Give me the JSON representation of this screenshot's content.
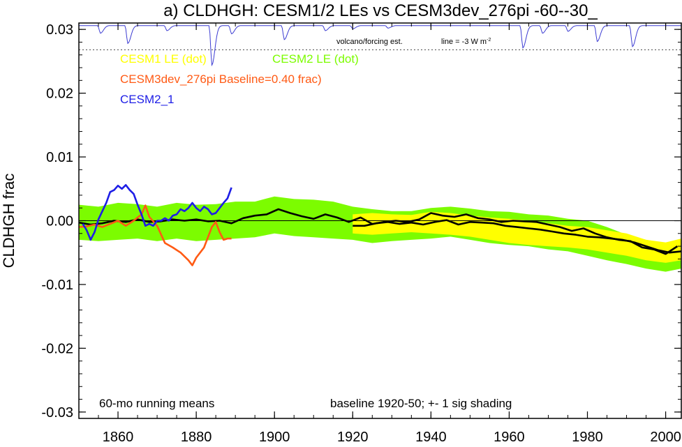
{
  "chart_data": {
    "type": "line",
    "title": "a) CLDHGH: CESM1/2 LEs vs CESM3dev_276pi -60--30_",
    "xlabel": "",
    "ylabel": "CLDHGH frac",
    "xlim": [
      1850,
      2004
    ],
    "ylim": [
      -0.031,
      0.031
    ],
    "x_ticks": [
      1860,
      1880,
      1900,
      1920,
      1940,
      1960,
      1980,
      2000
    ],
    "y_ticks": [
      0.03,
      0.02,
      0.01,
      0.0,
      -0.01,
      -0.02,
      -0.03
    ],
    "y_tick_labels": [
      "0.03",
      "0.02",
      "0.01",
      "0.00",
      "-0.01",
      "-0.02",
      "-0.03"
    ],
    "x_tick_labels": [
      "1860",
      "1880",
      "1900",
      "1920",
      "1940",
      "1960",
      "1980",
      "2000"
    ],
    "zero_line": true,
    "legend": {
      "cesm1": "CESM1 LE (dot)",
      "cesm2": "CESM2 LE (dot)",
      "cesm3": "CESM3dev_276pi Baseline=0.40 frac)",
      "cesm2_1": "CESM2_1"
    },
    "annotations": {
      "volcano": "volcano/forcing est.",
      "line_note": "line = -3 W m",
      "line_note_sup": "-2",
      "running": "60-mo running means",
      "baseline": "baseline 1920-50; +- 1 sig shading"
    },
    "colors": {
      "cesm1": "#ffff00",
      "cesm2": "#7cfc00",
      "cesm3": "#ff5a14",
      "cesm2_1": "#1e1ee6",
      "mean": "#000000",
      "volcano": "#3c3cd2"
    },
    "volcano_reference_y": 0.0268,
    "volcano_dips": [
      {
        "year": 1855.5,
        "depth": 0.0012
      },
      {
        "year": 1862.5,
        "depth": 0.0028
      },
      {
        "year": 1872.5,
        "depth": 0.0008
      },
      {
        "year": 1884.0,
        "depth": 0.0062
      },
      {
        "year": 1889.0,
        "depth": 0.0013
      },
      {
        "year": 1902.5,
        "depth": 0.0022
      },
      {
        "year": 1913.0,
        "depth": 0.0008
      },
      {
        "year": 1920.0,
        "depth": 0.0005
      },
      {
        "year": 1929.0,
        "depth": 0.0004
      },
      {
        "year": 1963.5,
        "depth": 0.0035
      },
      {
        "year": 1968.5,
        "depth": 0.0012
      },
      {
        "year": 1975.0,
        "depth": 0.0009
      },
      {
        "year": 1982.5,
        "depth": 0.0025
      },
      {
        "year": 1991.5,
        "depth": 0.0033
      }
    ],
    "series": [
      {
        "name": "CESM2 LE (dot)",
        "kind": "band",
        "x": [
          1850,
          1855,
          1860,
          1865,
          1870,
          1875,
          1880,
          1885,
          1890,
          1895,
          1900,
          1905,
          1910,
          1915,
          1920,
          1925,
          1930,
          1935,
          1940,
          1945,
          1950,
          1955,
          1960,
          1965,
          1970,
          1975,
          1980,
          1985,
          1990,
          1995,
          2000,
          2004
        ],
        "upper": [
          0.0025,
          0.0022,
          0.0028,
          0.0026,
          0.0022,
          0.0028,
          0.0025,
          0.0026,
          0.003,
          0.003,
          0.0038,
          0.0034,
          0.0033,
          0.003,
          0.0022,
          0.0018,
          0.0015,
          0.0015,
          0.002,
          0.0022,
          0.0019,
          0.0015,
          0.0014,
          0.001,
          0.0008,
          0.0003,
          0.0,
          -0.001,
          -0.0022,
          -0.003,
          -0.0035,
          -0.003
        ],
        "lower": [
          -0.003,
          -0.0032,
          -0.003,
          -0.0028,
          -0.0032,
          -0.0028,
          -0.0032,
          -0.003,
          -0.0028,
          -0.0026,
          -0.002,
          -0.0024,
          -0.0026,
          -0.0028,
          -0.003,
          -0.0035,
          -0.0032,
          -0.003,
          -0.0028,
          -0.0025,
          -0.003,
          -0.0035,
          -0.0038,
          -0.004,
          -0.0045,
          -0.0048,
          -0.0055,
          -0.0062,
          -0.0068,
          -0.0075,
          -0.008,
          -0.0075
        ]
      },
      {
        "name": "CESM1 LE (dot)",
        "kind": "band",
        "x": [
          1920,
          1925,
          1930,
          1935,
          1940,
          1945,
          1950,
          1955,
          1960,
          1965,
          1970,
          1975,
          1980,
          1985,
          1990,
          1995,
          2000,
          2004
        ],
        "upper": [
          0.001,
          0.0012,
          0.001,
          0.0009,
          0.0014,
          0.0012,
          0.0008,
          0.0005,
          0.0003,
          0.0,
          -0.0004,
          -0.0008,
          -0.001,
          -0.0015,
          -0.002,
          -0.003,
          -0.0034,
          -0.0028
        ],
        "lower": [
          -0.002,
          -0.0022,
          -0.002,
          -0.0018,
          -0.002,
          -0.0022,
          -0.0025,
          -0.003,
          -0.0035,
          -0.0038,
          -0.004,
          -0.0042,
          -0.0045,
          -0.005,
          -0.0055,
          -0.0062,
          -0.0066,
          -0.0062
        ]
      },
      {
        "name": "CESM2 LE mean",
        "kind": "line",
        "x": [
          1850,
          1853,
          1856,
          1859,
          1862,
          1865,
          1868,
          1871,
          1874,
          1877,
          1880,
          1883,
          1886,
          1889,
          1892,
          1895,
          1898,
          1901,
          1904,
          1907,
          1910,
          1913,
          1916,
          1919,
          1922,
          1925,
          1928,
          1931,
          1934,
          1937,
          1940,
          1943,
          1946,
          1949,
          1952,
          1955,
          1958,
          1961,
          1964,
          1967,
          1970,
          1973,
          1976,
          1979,
          1982,
          1985,
          1988,
          1991,
          1994,
          1997,
          2000,
          2003
        ],
        "y": [
          -0.0003,
          -0.0006,
          -0.0004,
          0.0,
          -0.0002,
          0.0002,
          -0.0002,
          -0.0001,
          0.0002,
          0.0,
          0.0002,
          -0.0001,
          0.0,
          -0.0004,
          0.0004,
          0.0008,
          0.001,
          0.0018,
          0.0012,
          0.0007,
          0.0003,
          0.001,
          0.0005,
          -0.0002,
          0.0005,
          -0.0005,
          -0.0002,
          0.0,
          -0.0002,
          0.0002,
          0.0012,
          0.0008,
          0.0006,
          0.001,
          0.0004,
          0.0002,
          -0.0002,
          0.0,
          -0.0001,
          -0.0002,
          -0.0006,
          -0.001,
          -0.0016,
          -0.0012,
          -0.002,
          -0.0026,
          -0.003,
          -0.0032,
          -0.0042,
          -0.0045,
          -0.0052,
          -0.004
        ]
      },
      {
        "name": "CESM1 LE mean",
        "kind": "line",
        "x": [
          1920,
          1923,
          1926,
          1929,
          1932,
          1935,
          1938,
          1941,
          1944,
          1947,
          1950,
          1953,
          1956,
          1959,
          1962,
          1965,
          1968,
          1971,
          1974,
          1977,
          1980,
          1983,
          1986,
          1989,
          1992,
          1995,
          1998,
          2001,
          2004
        ],
        "y": [
          -0.0008,
          -0.0008,
          -0.0004,
          -0.0002,
          -0.0005,
          -0.0003,
          -0.0006,
          -0.0002,
          0.0001,
          -0.0006,
          -0.0002,
          -0.0003,
          -0.0004,
          -0.0008,
          -0.001,
          -0.0012,
          -0.0014,
          -0.0017,
          -0.002,
          -0.0022,
          -0.0025,
          -0.0026,
          -0.0028,
          -0.003,
          -0.0034,
          -0.004,
          -0.0046,
          -0.005,
          -0.0048
        ]
      },
      {
        "name": "CESM3dev_276pi Baseline=0.40 frac)",
        "kind": "line",
        "x": [
          1850,
          1852,
          1854,
          1856,
          1858,
          1860,
          1862,
          1864,
          1866,
          1867,
          1868,
          1870,
          1872,
          1874,
          1876,
          1878,
          1879,
          1880,
          1882,
          1884,
          1885,
          1886,
          1887,
          1888,
          1889
        ],
        "y": [
          -0.001,
          -0.0009,
          -0.0006,
          -0.001,
          -0.0005,
          0.0,
          -0.0008,
          0.0,
          0.001,
          0.0024,
          0.0006,
          -0.0008,
          -0.0035,
          -0.0042,
          -0.005,
          -0.0062,
          -0.007,
          -0.0058,
          -0.0042,
          -0.001,
          -0.0002,
          -0.0018,
          -0.003,
          -0.0028,
          -0.0028
        ]
      },
      {
        "name": "CESM2_1",
        "kind": "line",
        "x": [
          1851,
          1852,
          1853,
          1854,
          1855,
          1856,
          1857,
          1858,
          1859,
          1860,
          1861,
          1862,
          1863,
          1864,
          1865,
          1866,
          1867,
          1868,
          1869,
          1870,
          1871,
          1872,
          1873,
          1874,
          1875,
          1876,
          1877,
          1878,
          1879,
          1880,
          1881,
          1882,
          1883,
          1884,
          1885,
          1886,
          1887,
          1888,
          1889
        ],
        "y": [
          -0.0005,
          -0.0015,
          -0.003,
          -0.0018,
          0.0002,
          0.0015,
          0.0028,
          0.0045,
          0.0048,
          0.0055,
          0.005,
          0.0056,
          0.0048,
          0.0042,
          0.0025,
          0.001,
          -0.0008,
          -0.0005,
          -0.0008,
          0.0,
          0.0,
          0.0004,
          0.0,
          0.0008,
          0.001,
          0.0018,
          0.0015,
          0.002,
          0.0028,
          0.002,
          0.0015,
          0.0022,
          0.0018,
          0.001,
          0.0012,
          0.002,
          0.0028,
          0.0035,
          0.0052
        ]
      }
    ]
  }
}
